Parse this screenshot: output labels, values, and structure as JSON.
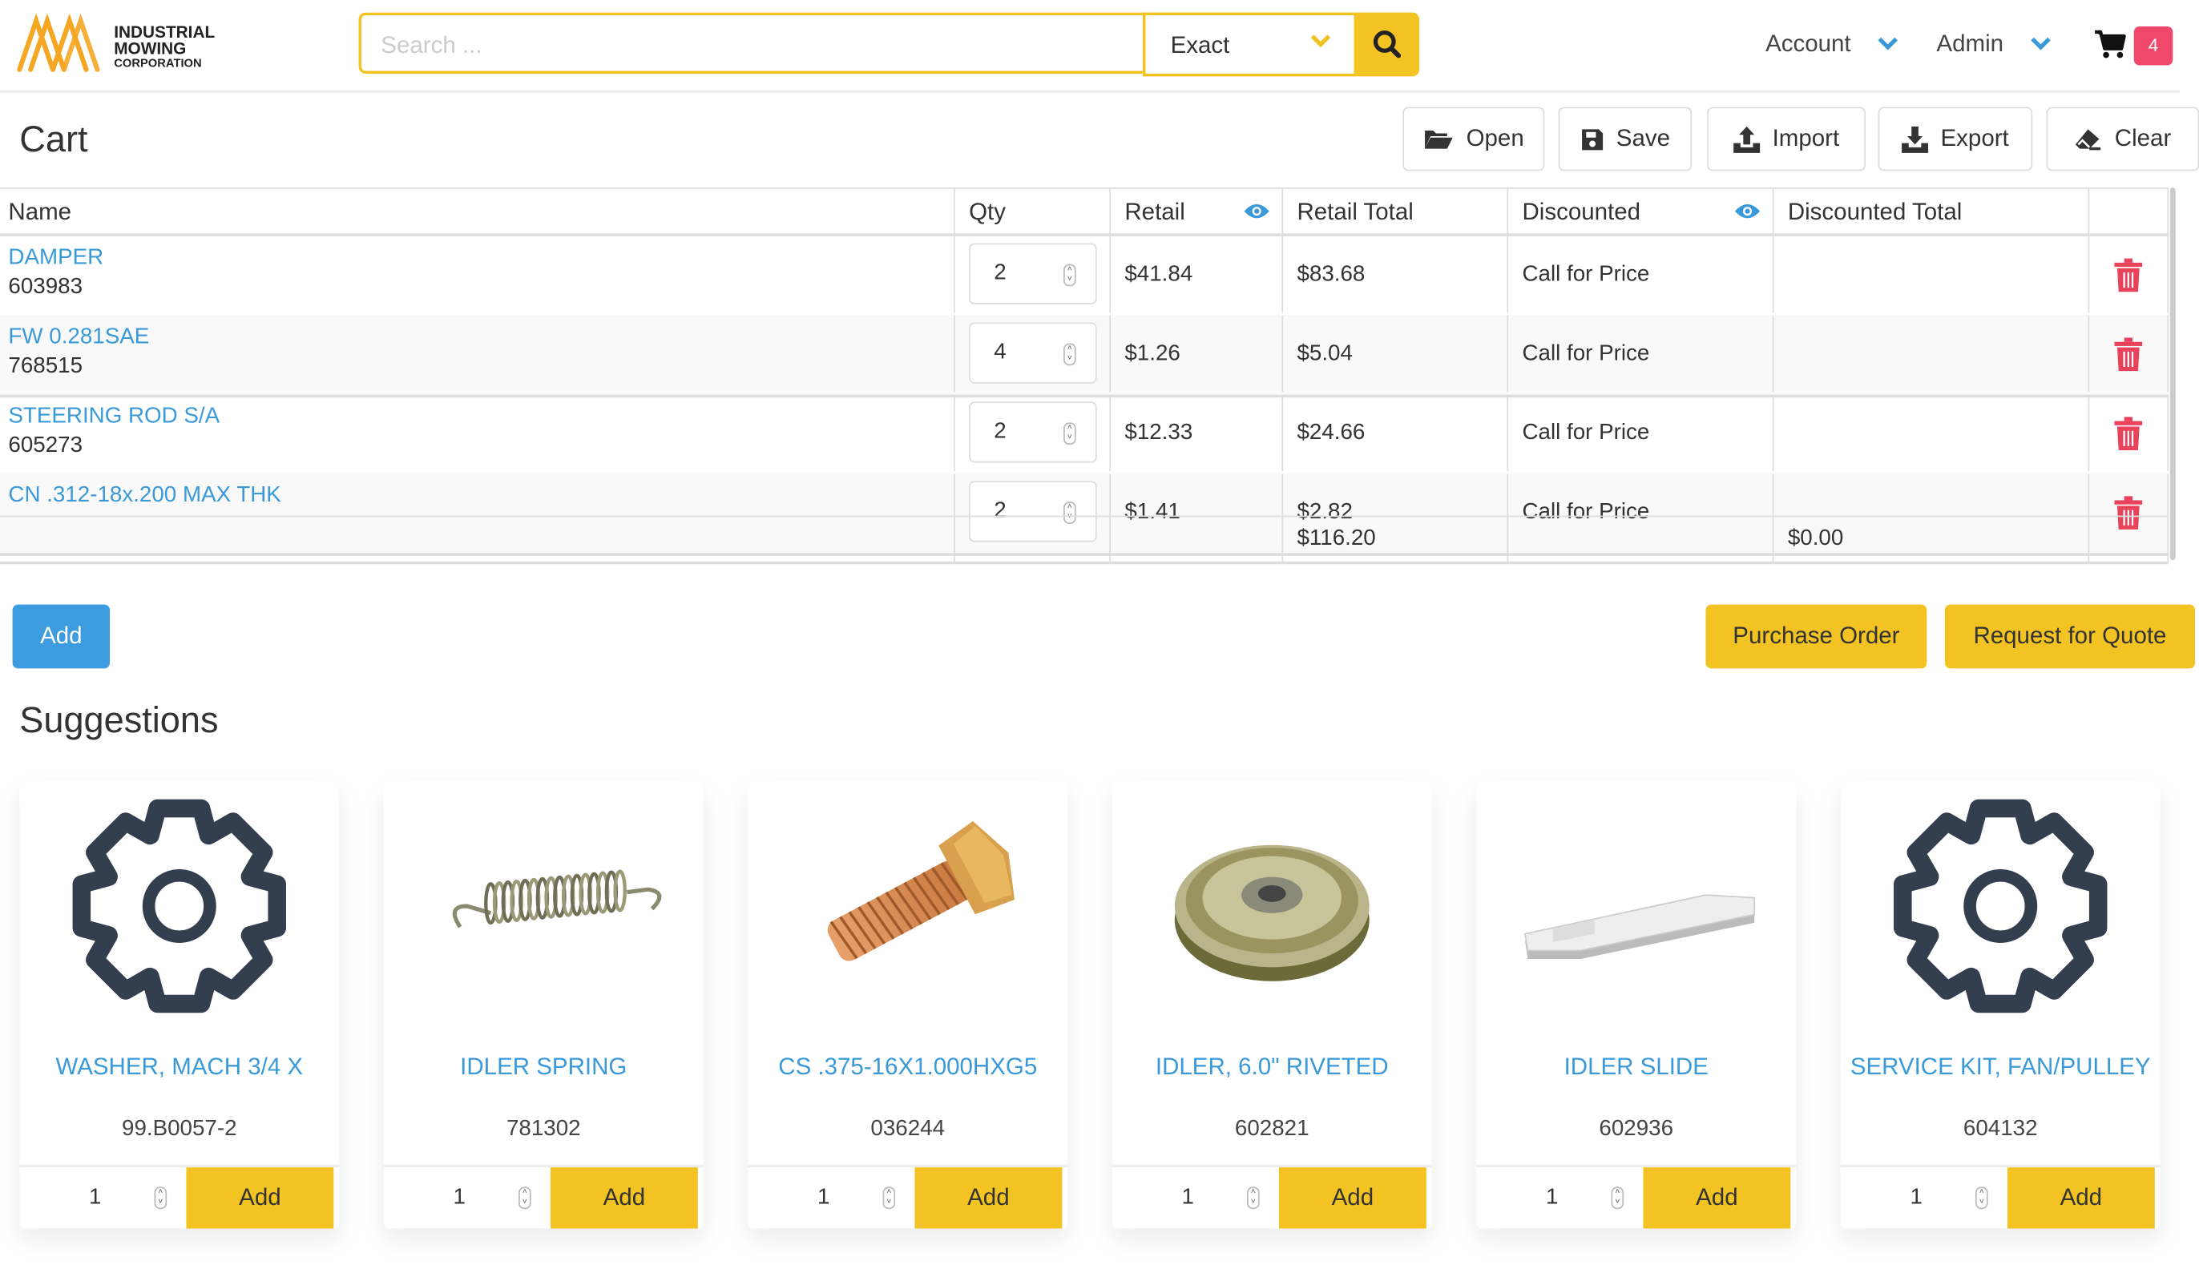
{
  "header": {
    "logo_text": [
      "INDUSTRIAL",
      "MOWING",
      "CORPORATION"
    ],
    "search_placeholder": "Search ...",
    "search_mode": "Exact",
    "nav": {
      "account": "Account",
      "admin": "Admin"
    },
    "cart_count": "4"
  },
  "page": {
    "title": "Cart",
    "toolbar": {
      "open": "Open",
      "save": "Save",
      "import": "Import",
      "export": "Export",
      "clear": "Clear"
    }
  },
  "cart_table": {
    "columns": [
      "Name",
      "Qty",
      "Retail",
      "Retail Total",
      "Discounted",
      "Discounted Total"
    ],
    "rows": [
      {
        "name": "DAMPER",
        "part": "603983",
        "qty": "2",
        "retail": "$41.84",
        "retail_total": "$83.68",
        "discounted": "Call for Price",
        "discounted_total": ""
      },
      {
        "name": "FW 0.281SAE",
        "part": "768515",
        "qty": "4",
        "retail": "$1.26",
        "retail_total": "$5.04",
        "discounted": "Call for Price",
        "discounted_total": ""
      },
      {
        "name": "STEERING ROD S/A",
        "part": "605273",
        "qty": "2",
        "retail": "$12.33",
        "retail_total": "$24.66",
        "discounted": "Call for Price",
        "discounted_total": ""
      },
      {
        "name": "CN .312-18x.200 MAX THK",
        "part": "",
        "qty": "2",
        "retail": "$1.41",
        "retail_total": "$2.82",
        "discounted": "Call for Price",
        "discounted_total": ""
      }
    ],
    "totals": {
      "retail_total": "$116.20",
      "discounted_total": "$0.00"
    }
  },
  "actions": {
    "add": "Add",
    "purchase_order": "Purchase Order",
    "request_quote": "Request for Quote"
  },
  "suggestions": {
    "title": "Suggestions",
    "items": [
      {
        "title": "WASHER, MACH 3/4 X",
        "part": "99.B0057-2",
        "qty": "1",
        "add": "Add",
        "image": "gear-placeholder"
      },
      {
        "title": "IDLER SPRING",
        "part": "781302",
        "qty": "1",
        "add": "Add",
        "image": "spring"
      },
      {
        "title": "CS .375-16X1.000HXG5",
        "part": "036244",
        "qty": "1",
        "add": "Add",
        "image": "bolt"
      },
      {
        "title": "IDLER, 6.0\" RIVETED",
        "part": "602821",
        "qty": "1",
        "add": "Add",
        "image": "pulley"
      },
      {
        "title": "IDLER SLIDE",
        "part": "602936",
        "qty": "1",
        "add": "Add",
        "image": "slide"
      },
      {
        "title": "SERVICE KIT, FAN/PULLEY",
        "part": "604132",
        "qty": "1",
        "add": "Add",
        "image": "gear-placeholder"
      }
    ]
  },
  "colors": {
    "accent": "#f2c322",
    "link": "#3a9ad9",
    "danger": "#e8435a",
    "badge": "#f0486a"
  }
}
